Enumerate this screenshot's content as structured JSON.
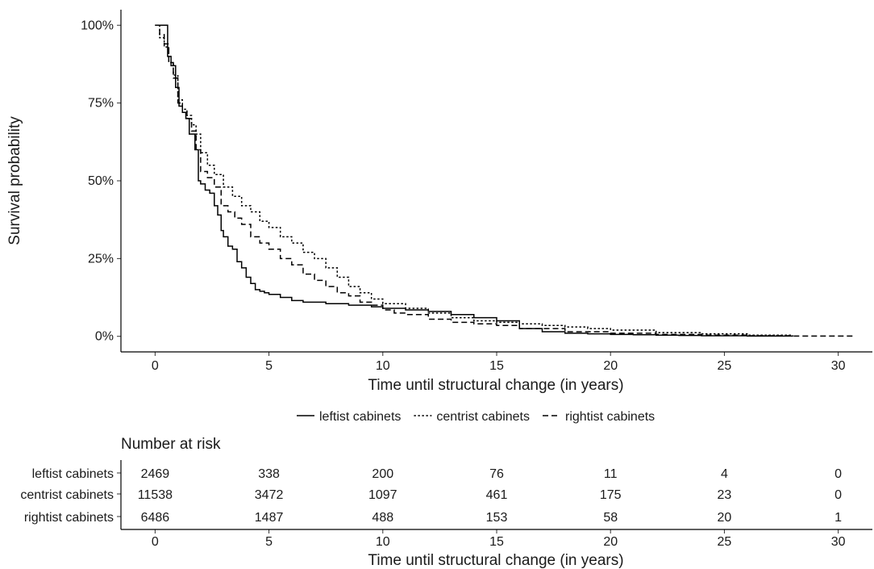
{
  "chart_data": [
    {
      "type": "line",
      "subtype": "step",
      "title": "",
      "xlabel": "Time until structural change (in years)",
      "ylabel": "Survival probability",
      "xlim": [
        -1.5,
        31.5
      ],
      "ylim": [
        -0.05,
        1.05
      ],
      "x_ticks": [
        0,
        5,
        10,
        15,
        20,
        25,
        30
      ],
      "x_tick_labels": [
        "0",
        "5",
        "10",
        "15",
        "20",
        "25",
        "30"
      ],
      "y_ticks": [
        0,
        0.25,
        0.5,
        0.75,
        1
      ],
      "y_tick_labels": [
        "0%",
        "25%",
        "50%",
        "75%",
        "100%"
      ],
      "grid": false,
      "legend_position": "bottom",
      "series": [
        {
          "name": "leftist cabinets",
          "line_style": "solid",
          "x": [
            0,
            0.55,
            0.7,
            0.9,
            1.05,
            1.2,
            1.35,
            1.5,
            1.75,
            1.9,
            2.0,
            2.2,
            2.4,
            2.6,
            2.75,
            2.9,
            3.0,
            3.2,
            3.4,
            3.6,
            3.8,
            4.0,
            4.2,
            4.4,
            4.6,
            4.8,
            5.0,
            5.5,
            6.0,
            6.5,
            7.5,
            8.5,
            9.5,
            10.0,
            11.0,
            12.0,
            13.0,
            14.0,
            15.0,
            16.0,
            17.0,
            18.0,
            19.0,
            20.0,
            21.0,
            22.0,
            23.0,
            24.0,
            25.0,
            26.0,
            27.0,
            28.0
          ],
          "y": [
            1.0,
            0.9,
            0.87,
            0.8,
            0.74,
            0.72,
            0.7,
            0.65,
            0.6,
            0.5,
            0.49,
            0.47,
            0.46,
            0.42,
            0.39,
            0.34,
            0.32,
            0.29,
            0.28,
            0.24,
            0.22,
            0.19,
            0.17,
            0.15,
            0.145,
            0.14,
            0.135,
            0.125,
            0.115,
            0.11,
            0.105,
            0.1,
            0.095,
            0.09,
            0.085,
            0.08,
            0.07,
            0.06,
            0.05,
            0.025,
            0.015,
            0.01,
            0.008,
            0.006,
            0.005,
            0.004,
            0.003,
            0.002,
            0.002,
            0.001,
            0.001,
            0.0
          ]
        },
        {
          "name": "centrist cabinets",
          "line_style": "dotted",
          "x": [
            0,
            0.2,
            0.4,
            0.6,
            0.8,
            1.0,
            1.2,
            1.4,
            1.6,
            1.8,
            2.0,
            2.3,
            2.6,
            3.0,
            3.4,
            3.8,
            4.2,
            4.6,
            5.0,
            5.5,
            6.0,
            6.5,
            7.0,
            7.5,
            8.0,
            8.5,
            9.0,
            9.5,
            10.0,
            11.0,
            12.0,
            13.0,
            14.0,
            15.0,
            16.0,
            17.0,
            18.0,
            19.0,
            20.0,
            22.0,
            24.0,
            26.0,
            28.0
          ],
          "y": [
            1.0,
            0.96,
            0.93,
            0.88,
            0.84,
            0.76,
            0.73,
            0.71,
            0.68,
            0.65,
            0.59,
            0.55,
            0.52,
            0.48,
            0.45,
            0.42,
            0.4,
            0.37,
            0.35,
            0.32,
            0.3,
            0.27,
            0.25,
            0.22,
            0.19,
            0.16,
            0.14,
            0.12,
            0.105,
            0.09,
            0.075,
            0.06,
            0.05,
            0.045,
            0.04,
            0.035,
            0.03,
            0.025,
            0.02,
            0.012,
            0.008,
            0.004,
            0.0
          ]
        },
        {
          "name": "rightist cabinets",
          "line_style": "dashed",
          "x": [
            0,
            0.2,
            0.4,
            0.6,
            0.8,
            1.0,
            1.2,
            1.4,
            1.6,
            1.8,
            2.0,
            2.3,
            2.6,
            2.9,
            3.2,
            3.5,
            3.8,
            4.2,
            4.6,
            5.0,
            5.5,
            6.0,
            6.5,
            7.0,
            7.5,
            8.0,
            8.5,
            9.0,
            9.5,
            10.0,
            10.5,
            11.0,
            12.0,
            13.0,
            14.0,
            15.0,
            16.0,
            18.0,
            20.0,
            22.0,
            24.0,
            26.0,
            28.0,
            30.7
          ],
          "y": [
            1.0,
            0.97,
            0.94,
            0.88,
            0.83,
            0.75,
            0.72,
            0.7,
            0.66,
            0.6,
            0.53,
            0.51,
            0.48,
            0.42,
            0.4,
            0.38,
            0.36,
            0.32,
            0.3,
            0.28,
            0.25,
            0.23,
            0.2,
            0.18,
            0.16,
            0.14,
            0.13,
            0.11,
            0.1,
            0.085,
            0.075,
            0.07,
            0.055,
            0.045,
            0.04,
            0.035,
            0.025,
            0.015,
            0.01,
            0.006,
            0.004,
            0.002,
            0.001,
            0.0
          ]
        }
      ]
    },
    {
      "type": "table",
      "title": "Number at risk",
      "xlabel": "Time until structural change (in years)",
      "x_ticks": [
        0,
        5,
        10,
        15,
        20,
        25,
        30
      ],
      "x_tick_labels": [
        "0",
        "5",
        "10",
        "15",
        "20",
        "25",
        "30"
      ],
      "rows": [
        {
          "name": "leftist cabinets",
          "values": [
            2469,
            338,
            200,
            76,
            11,
            4,
            0
          ]
        },
        {
          "name": "centrist cabinets",
          "values": [
            11538,
            3472,
            1097,
            461,
            175,
            23,
            0
          ]
        },
        {
          "name": "rightist cabinets",
          "values": [
            6486,
            1487,
            488,
            153,
            58,
            20,
            1
          ]
        }
      ]
    }
  ]
}
